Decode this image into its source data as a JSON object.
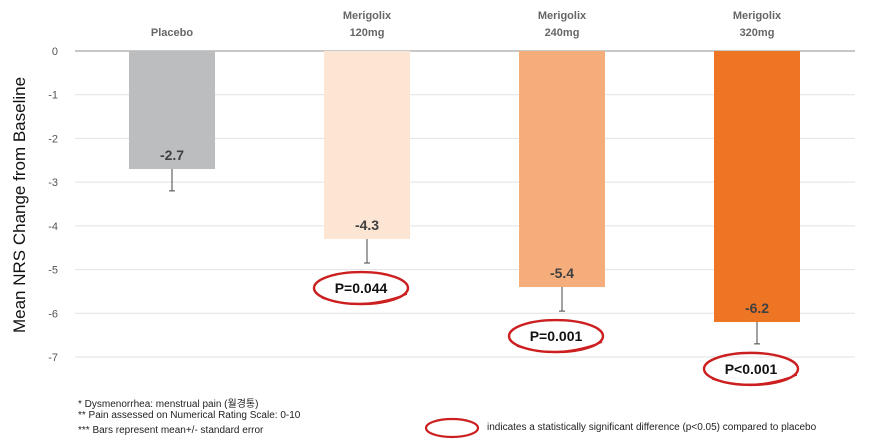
{
  "chart_data": {
    "type": "bar",
    "categories": [
      [
        "Placebo"
      ],
      [
        "Merigolix",
        "120mg"
      ],
      [
        "Merigolix",
        "240mg"
      ],
      [
        "Merigolix",
        "320mg"
      ]
    ],
    "values": [
      -2.7,
      -4.3,
      -5.4,
      -6.2
    ],
    "value_labels": [
      "-2.7",
      "-4.3",
      "-5.4",
      "-6.2"
    ],
    "error_bars": [
      0.5,
      0.55,
      0.55,
      0.5
    ],
    "colors": [
      "#bcbdbf",
      "#fde5d3",
      "#f5ad7b",
      "#ee7524"
    ],
    "ylabel": "Mean NRS Change from Baseline",
    "ylim": [
      -7,
      0
    ],
    "yticks": [
      0,
      -1,
      -2,
      -3,
      -4,
      -5,
      -6,
      -7
    ],
    "grid": true,
    "p_values": [
      null,
      "P=0.044",
      "P=0.001",
      "P<0.001"
    ],
    "circle_color": "#cc1f1f"
  },
  "footnotes": [
    "* Dysmenorrhea: menstrual pain (월경통)",
    "** Pain assessed on Numerical Rating Scale: 0-10",
    "*** Bars represent mean+/- standard error"
  ],
  "legend_note": "indicates a statistically significant difference (p<0.05) compared to placebo"
}
